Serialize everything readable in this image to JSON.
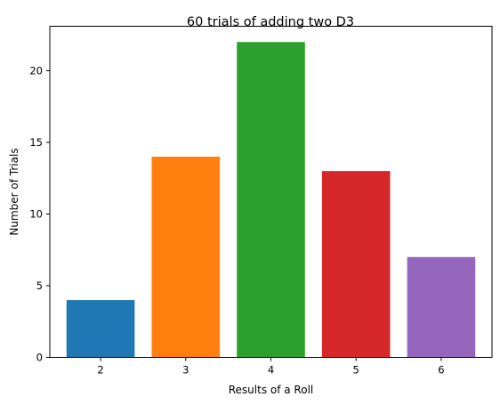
{
  "chart_data": {
    "type": "bar",
    "title": "60 trials of adding two D3",
    "xlabel": "Results of a Roll",
    "ylabel": "Number of Trials",
    "categories": [
      "2",
      "3",
      "4",
      "5",
      "6"
    ],
    "values": [
      4,
      14,
      22,
      13,
      7
    ],
    "colors": [
      "#1f77b4",
      "#ff7f0e",
      "#2ca02c",
      "#d62728",
      "#9467bd"
    ],
    "ylim": [
      0,
      23.1
    ],
    "yticks": [
      0,
      5,
      10,
      15,
      20
    ],
    "grid": false,
    "legend": "none"
  }
}
